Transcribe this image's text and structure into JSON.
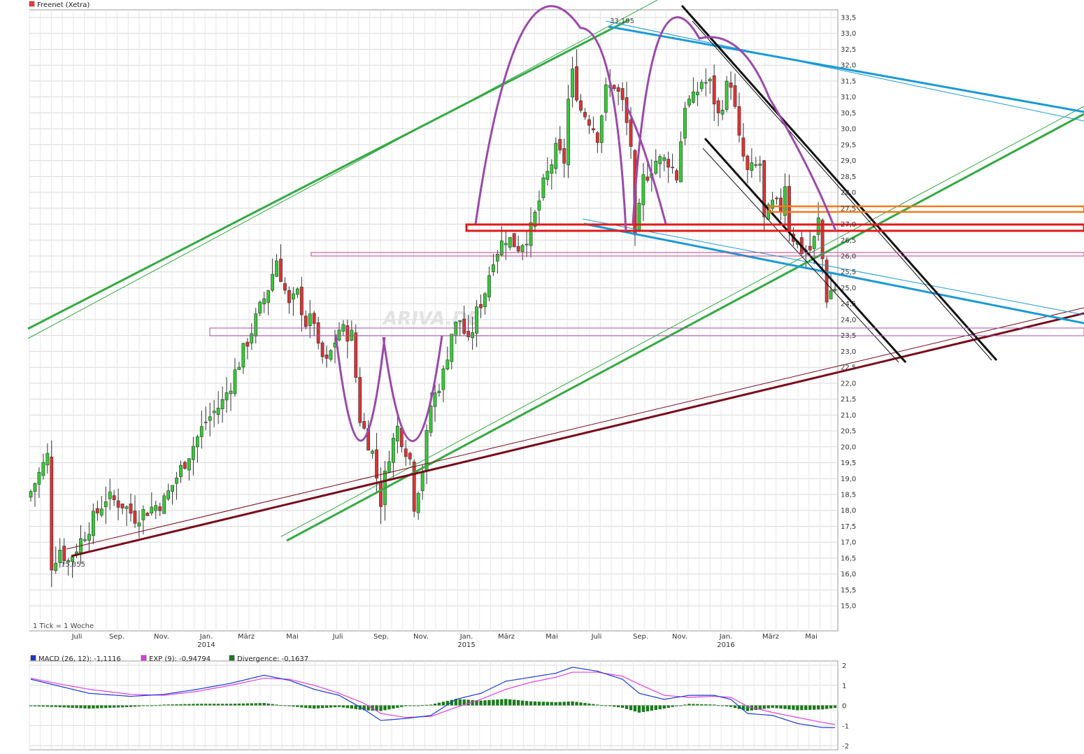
{
  "title": "Freenet (Xetra)",
  "title_color": "#e04040",
  "tick_note": "1 Tick = 1 Woche",
  "watermark": "ARIVA.DE",
  "colors": {
    "up": "#33cc33",
    "down": "#dd3333",
    "grid": "#d8d8d8",
    "macd": "#1a3ad0",
    "signal": "#e040e0",
    "divergence": "#1c7a1c",
    "trend_green": "#33aa44",
    "trend_blue": "#1a9ad6",
    "trend_black": "#111111",
    "trend_maroon": "#7a0a1a",
    "purple": "#9a4aaa",
    "support_red": "#e01a1a",
    "orange": "#f07a1a",
    "pink": "#c0408a"
  },
  "annotations": {
    "high": "33,105",
    "low": "15,855"
  },
  "chart_data": [
    {
      "type": "candlestick",
      "title": "Freenet (Xetra)",
      "ylim": [
        14.5,
        33.5
      ],
      "y_ticks": [
        "33,5",
        "33,0",
        "32,5",
        "32,0",
        "31,5",
        "31,0",
        "30,5",
        "30,0",
        "29,5",
        "29,0",
        "28,5",
        "28,0",
        "27,5",
        "27,0",
        "26,5",
        "26,0",
        "25,5",
        "25,0",
        "24,5",
        "24,0",
        "23,5",
        "23,0",
        "22,5",
        "22,0",
        "21,5",
        "21,0",
        "20,5",
        "20,0",
        "19,5",
        "19,0",
        "18,5",
        "18,0",
        "17,5",
        "17,0",
        "16,5",
        "16,0",
        "15,5",
        "15,0"
      ],
      "x_month_labels": [
        "Juli",
        "Sep.",
        "Nov.",
        "Jan.",
        "März",
        "Mai",
        "Juli",
        "Sep.",
        "Nov.",
        "Jan.",
        "März",
        "Mai",
        "Juli",
        "Sep.",
        "Nov.",
        "Jan.",
        "März",
        "Mai"
      ],
      "x_year_labels": [
        "2014",
        "2015",
        "2016"
      ],
      "grid": true,
      "close_path": [
        [
          0,
          18.6
        ],
        [
          4,
          19.7
        ],
        [
          5,
          16.3
        ],
        [
          7,
          16.8
        ],
        [
          9,
          16.4
        ],
        [
          14,
          17.5
        ],
        [
          18,
          18.4
        ],
        [
          22,
          18.2
        ],
        [
          25,
          17.8
        ],
        [
          32,
          18.3
        ],
        [
          36,
          19.3
        ],
        [
          42,
          20.8
        ],
        [
          46,
          21.4
        ],
        [
          48,
          22.0
        ],
        [
          54,
          24.0
        ],
        [
          57,
          25.0
        ],
        [
          59,
          25.9
        ],
        [
          62,
          24.4
        ],
        [
          64,
          24.8
        ],
        [
          66,
          23.9
        ],
        [
          68,
          24.0
        ],
        [
          69,
          23.0
        ],
        [
          71,
          22.6
        ],
        [
          74,
          23.7
        ],
        [
          77,
          23.5
        ],
        [
          79,
          20.9
        ],
        [
          82,
          19.8
        ],
        [
          84,
          18.3
        ],
        [
          86,
          19.8
        ],
        [
          88,
          20.6
        ],
        [
          91,
          19.6
        ],
        [
          92,
          18.2
        ],
        [
          94,
          19.3
        ],
        [
          96,
          21.3
        ],
        [
          99,
          22.3
        ],
        [
          101,
          23.6
        ],
        [
          103,
          24.0
        ],
        [
          105,
          23.2
        ],
        [
          107,
          24.2
        ],
        [
          109,
          24.9
        ],
        [
          111,
          26.0
        ],
        [
          114,
          26.6
        ],
        [
          117,
          26.3
        ],
        [
          120,
          26.8
        ],
        [
          123,
          28.2
        ],
        [
          126,
          29.3
        ],
        [
          128,
          29.0
        ],
        [
          129,
          30.9
        ],
        [
          130,
          31.7
        ],
        [
          132,
          30.6
        ],
        [
          134,
          30.3
        ],
        [
          136,
          29.8
        ],
        [
          138,
          31.2
        ],
        [
          140,
          31.4
        ],
        [
          142,
          30.8
        ],
        [
          144,
          29.5
        ],
        [
          145,
          26.4
        ],
        [
          147,
          28.4
        ],
        [
          150,
          29.0
        ],
        [
          153,
          29.0
        ],
        [
          155,
          28.5
        ],
        [
          157,
          30.8
        ],
        [
          159,
          30.9
        ],
        [
          161,
          31.5
        ],
        [
          163,
          31.4
        ],
        [
          165,
          30.4
        ],
        [
          167,
          31.3
        ],
        [
          168,
          31.5
        ],
        [
          170,
          29.6
        ],
        [
          172,
          28.6
        ],
        [
          174,
          28.8
        ],
        [
          175,
          28.9
        ],
        [
          176,
          27.1
        ],
        [
          178,
          27.6
        ],
        [
          180,
          27.5
        ],
        [
          181,
          28.3
        ],
        [
          182,
          26.9
        ],
        [
          183,
          26.6
        ],
        [
          185,
          26.2
        ],
        [
          187,
          26.2
        ],
        [
          188,
          26.5
        ],
        [
          189,
          27.1
        ],
        [
          191,
          24.7
        ],
        [
          192,
          24.9
        ],
        [
          193,
          25.0
        ]
      ],
      "high": {
        "value": 33.105,
        "label": "33,105"
      },
      "low": {
        "value": 15.855,
        "label": "15,855"
      }
    },
    {
      "type": "line",
      "ylim": [
        -2,
        2
      ],
      "y_ticks": [
        "2",
        "1",
        "0",
        "-1",
        "-2"
      ],
      "legend": [
        {
          "name": "MACD (26, 12): -1,1116",
          "color": "#1a3ad0"
        },
        {
          "name": "EXP (9): -0,94794",
          "color": "#e040e0"
        },
        {
          "name": "Divergence: -0,1637",
          "color": "#1c7a1c"
        }
      ],
      "macd_path": [
        [
          0,
          1.3
        ],
        [
          6,
          1.0
        ],
        [
          14,
          0.6
        ],
        [
          24,
          0.45
        ],
        [
          32,
          0.55
        ],
        [
          40,
          0.8
        ],
        [
          48,
          1.1
        ],
        [
          56,
          1.5
        ],
        [
          62,
          1.25
        ],
        [
          68,
          0.8
        ],
        [
          74,
          0.5
        ],
        [
          80,
          -0.2
        ],
        [
          84,
          -0.75
        ],
        [
          90,
          -0.65
        ],
        [
          96,
          -0.5
        ],
        [
          102,
          0.3
        ],
        [
          108,
          0.6
        ],
        [
          114,
          1.2
        ],
        [
          120,
          1.4
        ],
        [
          126,
          1.6
        ],
        [
          130,
          1.9
        ],
        [
          136,
          1.7
        ],
        [
          142,
          1.3
        ],
        [
          146,
          0.6
        ],
        [
          152,
          0.3
        ],
        [
          158,
          0.5
        ],
        [
          164,
          0.5
        ],
        [
          168,
          0.3
        ],
        [
          172,
          -0.4
        ],
        [
          178,
          -0.5
        ],
        [
          184,
          -0.9
        ],
        [
          190,
          -1.1
        ],
        [
          193,
          -1.11
        ]
      ],
      "signal_path": [
        [
          0,
          1.35
        ],
        [
          6,
          1.1
        ],
        [
          14,
          0.8
        ],
        [
          24,
          0.55
        ],
        [
          32,
          0.5
        ],
        [
          40,
          0.7
        ],
        [
          48,
          1.0
        ],
        [
          56,
          1.35
        ],
        [
          62,
          1.3
        ],
        [
          68,
          1.0
        ],
        [
          74,
          0.6
        ],
        [
          80,
          0.1
        ],
        [
          84,
          -0.4
        ],
        [
          90,
          -0.6
        ],
        [
          96,
          -0.55
        ],
        [
          102,
          -0.1
        ],
        [
          108,
          0.3
        ],
        [
          114,
          0.8
        ],
        [
          120,
          1.15
        ],
        [
          126,
          1.4
        ],
        [
          130,
          1.65
        ],
        [
          136,
          1.65
        ],
        [
          142,
          1.45
        ],
        [
          146,
          1.05
        ],
        [
          152,
          0.5
        ],
        [
          158,
          0.4
        ],
        [
          164,
          0.45
        ],
        [
          168,
          0.4
        ],
        [
          172,
          -0.05
        ],
        [
          178,
          -0.35
        ],
        [
          184,
          -0.6
        ],
        [
          190,
          -0.85
        ],
        [
          193,
          -0.95
        ]
      ]
    }
  ]
}
